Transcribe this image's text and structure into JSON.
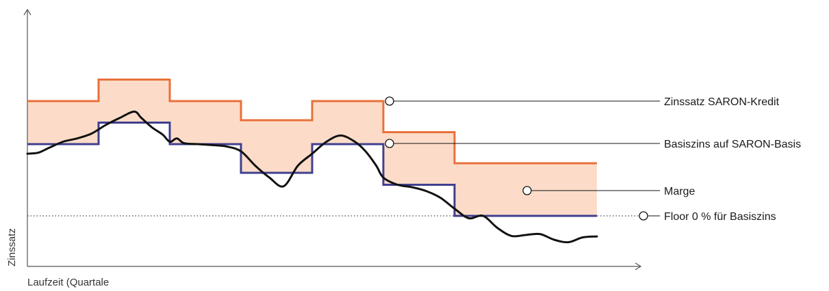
{
  "chart_data": {
    "type": "line",
    "xlabel": "Laufzeit (Quartale",
    "ylabel": "Zinssatz",
    "x_ticks": "none",
    "y_ticks": "none",
    "quarters": [
      0,
      1,
      2,
      3,
      4,
      5,
      6,
      7,
      8
    ],
    "series": [
      {
        "name": "Zinssatz SARON-Kredit",
        "role": "step",
        "color": "#e8703a",
        "steps": [
          2.4,
          2.85,
          2.4,
          2.0,
          2.4,
          1.75,
          1.1,
          1.1
        ]
      },
      {
        "name": "Basiszins auf SARON-Basis",
        "role": "step",
        "color": "#3f3f8f",
        "steps": [
          1.5,
          1.95,
          1.5,
          0.9,
          1.5,
          0.65,
          0.0,
          0.0
        ]
      },
      {
        "role": "daily-rate",
        "color": "#111111",
        "x": [
          0,
          0.15,
          0.3,
          0.5,
          0.7,
          0.9,
          1.1,
          1.3,
          1.5,
          1.6,
          1.75,
          1.9,
          2.0,
          2.1,
          2.2,
          2.4,
          2.6,
          2.8,
          3.0,
          3.2,
          3.4,
          3.6,
          3.8,
          4.0,
          4.2,
          4.4,
          4.6,
          4.75,
          4.9,
          5.0,
          5.2,
          5.4,
          5.6,
          5.8,
          6.0,
          6.2,
          6.4,
          6.6,
          6.8,
          7.0,
          7.2,
          7.4,
          7.6,
          7.8,
          8.0
        ],
        "y": [
          1.3,
          1.32,
          1.42,
          1.55,
          1.62,
          1.72,
          1.9,
          2.05,
          2.18,
          2.05,
          1.85,
          1.7,
          1.55,
          1.62,
          1.52,
          1.5,
          1.48,
          1.45,
          1.35,
          1.05,
          0.8,
          0.62,
          1.05,
          1.3,
          1.55,
          1.68,
          1.55,
          1.35,
          1.05,
          0.8,
          0.65,
          0.6,
          0.52,
          0.38,
          0.15,
          -0.05,
          0.0,
          -0.25,
          -0.42,
          -0.4,
          -0.38,
          -0.5,
          -0.55,
          -0.45,
          -0.43
        ]
      }
    ],
    "floor": {
      "name": "Floor 0% für Basiszins",
      "value": 0,
      "style": "dotted"
    },
    "margin_band": {
      "name": "Marge",
      "between": [
        "Zinssatz SARON-Kredit",
        "Basiszins auf SARON-Basis"
      ],
      "color": "#fcdcc8"
    },
    "ylim": [
      -0.9,
      3.8
    ],
    "xlim": [
      0,
      8.6
    ],
    "legend": "right-side callouts"
  },
  "callouts": [
    {
      "label": "Zinssatz SARON-Kredit",
      "target": "Zinssatz SARON-Kredit"
    },
    {
      "label": "Basiszins auf SARON-Basis",
      "target": "Basiszins auf SARON-Basis"
    },
    {
      "label": "Marge",
      "target": "Marge"
    },
    {
      "label": "Floor 0 % für Basiszins",
      "target": "Floor 0% für Basiszins"
    }
  ],
  "colors": {
    "kredit": "#e8703a",
    "basis": "#3f3f8f",
    "marge": "#fcdcc8",
    "saron": "#111111",
    "axis": "#555555"
  }
}
